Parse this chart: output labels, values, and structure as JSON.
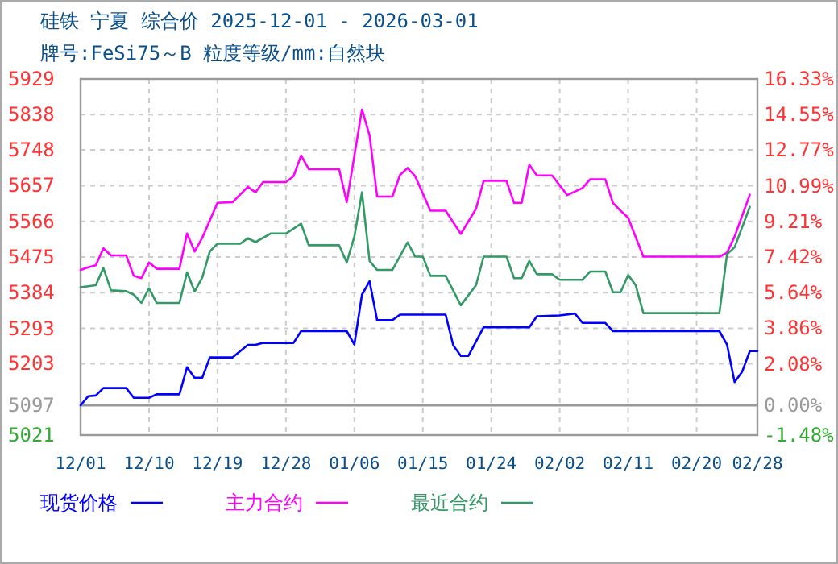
{
  "chart_data": {
    "type": "line",
    "title": "硅铁 宁夏 综合价 2025-12-01 - 2026-03-01",
    "subtitle": "牌号:FeSi75～B 粒度等级/mm:自然块",
    "xlim": [
      "2025-12-01",
      "2026-02-28"
    ],
    "xticks": [
      {
        "value": "2025-12-01",
        "label": "12/01"
      },
      {
        "value": "2025-12-10",
        "label": "12/10"
      },
      {
        "value": "2025-12-19",
        "label": "12/19"
      },
      {
        "value": "2025-12-28",
        "label": "12/28"
      },
      {
        "value": "2026-01-06",
        "label": "01/06"
      },
      {
        "value": "2026-01-15",
        "label": "01/15"
      },
      {
        "value": "2026-01-24",
        "label": "01/24"
      },
      {
        "value": "2026-02-02",
        "label": "02/02"
      },
      {
        "value": "2026-02-11",
        "label": "02/11"
      },
      {
        "value": "2026-02-20",
        "label": "02/20"
      },
      {
        "value": "2026-02-28",
        "label": "02/28"
      }
    ],
    "ylim": [
      5021,
      5929
    ],
    "yticks": [
      5021,
      5097,
      5203,
      5293,
      5384,
      5475,
      5566,
      5657,
      5748,
      5838,
      5929
    ],
    "y2lim": [
      -1.48,
      16.33
    ],
    "y2ticks": [
      {
        "value": -1.48,
        "label": "-1.48%"
      },
      {
        "value": 0,
        "label": "0.00%"
      },
      {
        "value": 2.08,
        "label": "2.08%"
      },
      {
        "value": 3.86,
        "label": "3.86%"
      },
      {
        "value": 5.64,
        "label": "5.64%"
      },
      {
        "value": 7.42,
        "label": "7.42%"
      },
      {
        "value": 9.21,
        "label": "9.21%"
      },
      {
        "value": 10.99,
        "label": "10.99%"
      },
      {
        "value": 12.77,
        "label": "12.77%"
      },
      {
        "value": 14.55,
        "label": "14.55%"
      },
      {
        "value": 16.33,
        "label": "16.33%"
      }
    ],
    "ref_lines": [
      {
        "axis": "y2",
        "value": 0,
        "color": "#999999",
        "line_style": "solid"
      }
    ],
    "grid": true,
    "legend": "bottom",
    "marker": "none",
    "line_style": "solid",
    "series": [
      {
        "name": "现货价格",
        "color": "#0000ff",
        "x": [
          "2025-12-01",
          "2025-12-02",
          "2025-12-03",
          "2025-12-04",
          "2025-12-07",
          "2025-12-08",
          "2025-12-10",
          "2025-12-11",
          "2025-12-14",
          "2025-12-15",
          "2025-12-16",
          "2025-12-17",
          "2025-12-18",
          "2025-12-21",
          "2025-12-23",
          "2025-12-24",
          "2025-12-25",
          "2025-12-29",
          "2025-12-30",
          "2026-01-05",
          "2026-01-06",
          "2026-01-07",
          "2026-01-08",
          "2026-01-09",
          "2026-01-11",
          "2026-01-12",
          "2026-01-18",
          "2026-01-19",
          "2026-01-20",
          "2026-01-21",
          "2026-01-23",
          "2026-01-29",
          "2026-01-30",
          "2026-02-02",
          "2026-02-04",
          "2026-02-05",
          "2026-02-08",
          "2026-02-09",
          "2026-02-23",
          "2026-02-24",
          "2026-02-25",
          "2026-02-26",
          "2026-02-27",
          "2026-02-28"
        ],
        "values": [
          5097,
          5120,
          5122,
          5141,
          5141,
          5116,
          5116,
          5125,
          5125,
          5194,
          5167,
          5167,
          5219,
          5219,
          5251,
          5251,
          5256,
          5256,
          5286,
          5286,
          5252,
          5379,
          5413,
          5314,
          5314,
          5328,
          5328,
          5250,
          5223,
          5223,
          5296,
          5296,
          5324,
          5326,
          5331,
          5307,
          5307,
          5286,
          5286,
          5252,
          5156,
          5183,
          5235,
          5235
        ]
      },
      {
        "name": "主力合约",
        "color": "#ff00ff",
        "x": [
          "2025-12-01",
          "2025-12-02",
          "2025-12-03",
          "2025-12-04",
          "2025-12-05",
          "2025-12-07",
          "2025-12-08",
          "2025-12-09",
          "2025-12-10",
          "2025-12-11",
          "2025-12-14",
          "2025-12-15",
          "2025-12-16",
          "2025-12-17",
          "2025-12-19",
          "2025-12-21",
          "2025-12-23",
          "2025-12-24",
          "2025-12-25",
          "2025-12-28",
          "2025-12-29",
          "2025-12-30",
          "2025-12-31",
          "2026-01-04",
          "2026-01-05",
          "2026-01-07",
          "2026-01-08",
          "2026-01-09",
          "2026-01-11",
          "2026-01-12",
          "2026-01-13",
          "2026-01-14",
          "2026-01-15",
          "2026-01-16",
          "2026-01-18",
          "2026-01-20",
          "2026-01-22",
          "2026-01-23",
          "2026-01-26",
          "2026-01-27",
          "2026-01-28",
          "2026-01-29",
          "2026-01-30",
          "2026-02-01",
          "2026-02-03",
          "2026-02-05",
          "2026-02-06",
          "2026-02-08",
          "2026-02-09",
          "2026-02-10",
          "2026-02-11",
          "2026-02-13",
          "2026-02-23",
          "2026-02-24",
          "2026-02-25",
          "2026-02-27"
        ],
        "values": [
          5442,
          5449,
          5454,
          5497,
          5479,
          5479,
          5427,
          5421,
          5461,
          5445,
          5445,
          5535,
          5489,
          5524,
          5613,
          5615,
          5654,
          5640,
          5666,
          5666,
          5681,
          5734,
          5699,
          5699,
          5615,
          5851,
          5785,
          5629,
          5629,
          5684,
          5702,
          5681,
          5637,
          5593,
          5593,
          5534,
          5598,
          5669,
          5669,
          5613,
          5613,
          5710,
          5683,
          5683,
          5633,
          5651,
          5673,
          5673,
          5613,
          5593,
          5575,
          5476,
          5476,
          5486,
          5527,
          5634
        ]
      },
      {
        "name": "最近合约",
        "color": "#339966",
        "x": [
          "2025-12-01",
          "2025-12-03",
          "2025-12-04",
          "2025-12-05",
          "2025-12-07",
          "2025-12-08",
          "2025-12-09",
          "2025-12-10",
          "2025-12-11",
          "2025-12-14",
          "2025-12-15",
          "2025-12-16",
          "2025-12-17",
          "2025-12-18",
          "2025-12-19",
          "2025-12-22",
          "2025-12-23",
          "2025-12-24",
          "2025-12-26",
          "2025-12-28",
          "2025-12-30",
          "2025-12-31",
          "2026-01-04",
          "2026-01-05",
          "2026-01-06",
          "2026-01-07",
          "2026-01-08",
          "2026-01-09",
          "2026-01-11",
          "2026-01-13",
          "2026-01-14",
          "2026-01-15",
          "2026-01-16",
          "2026-01-18",
          "2026-01-20",
          "2026-01-22",
          "2026-01-23",
          "2026-01-26",
          "2026-01-27",
          "2026-01-28",
          "2026-01-29",
          "2026-01-30",
          "2026-02-01",
          "2026-02-02",
          "2026-02-05",
          "2026-02-06",
          "2026-02-08",
          "2026-02-09",
          "2026-02-10",
          "2026-02-11",
          "2026-02-12",
          "2026-02-13",
          "2026-02-23",
          "2026-02-24",
          "2026-02-25",
          "2026-02-27"
        ],
        "values": [
          5398,
          5403,
          5447,
          5390,
          5388,
          5379,
          5358,
          5395,
          5358,
          5358,
          5436,
          5387,
          5423,
          5489,
          5509,
          5509,
          5523,
          5513,
          5535,
          5535,
          5560,
          5505,
          5505,
          5461,
          5527,
          5640,
          5465,
          5442,
          5442,
          5512,
          5476,
          5476,
          5427,
          5427,
          5352,
          5403,
          5476,
          5476,
          5421,
          5421,
          5465,
          5431,
          5431,
          5417,
          5417,
          5438,
          5438,
          5385,
          5385,
          5429,
          5403,
          5332,
          5332,
          5482,
          5500,
          5603
        ]
      }
    ]
  }
}
